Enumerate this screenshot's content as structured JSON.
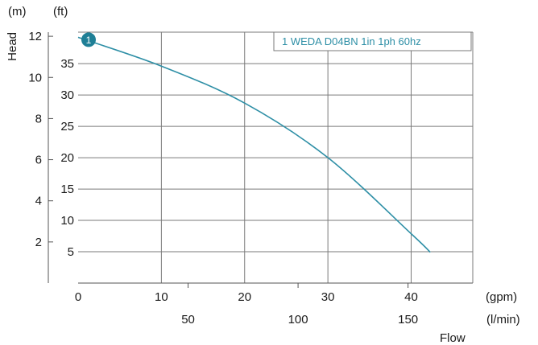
{
  "chart_data": {
    "type": "line",
    "ylabel": "Head",
    "xlabel": "Flow",
    "unit_labels": {
      "y_primary": "(m)",
      "y_secondary": "(ft)",
      "x_primary": "(gpm)",
      "x_secondary": "(l/min)"
    },
    "x_primary": {
      "unit": "gpm",
      "lim": [
        0,
        47.4
      ],
      "ticks": [
        0,
        10,
        20,
        30,
        40
      ]
    },
    "x_secondary": {
      "unit": "l/min",
      "ticks": [
        50,
        100,
        150
      ]
    },
    "y_primary": {
      "unit": "m",
      "lim": [
        0,
        12.2
      ],
      "ticks": [
        2,
        4,
        6,
        8,
        10,
        12
      ]
    },
    "y_secondary": {
      "unit": "ft",
      "ticks": [
        5,
        10,
        15,
        20,
        25,
        30,
        35
      ]
    },
    "grid": true,
    "legend": {
      "position": "top-right",
      "entries": [
        "1 WEDA D04BN 1in 1ph 60hz"
      ]
    },
    "series": [
      {
        "name": "1 WEDA D04BN 1in 1ph 60hz",
        "marker_label": "1",
        "color": "#2e8fa6",
        "x": [
          0,
          10,
          20,
          30,
          40,
          42.3
        ],
        "y": [
          11.95,
          10.55,
          8.75,
          6.1,
          2.4,
          1.5
        ]
      }
    ]
  }
}
